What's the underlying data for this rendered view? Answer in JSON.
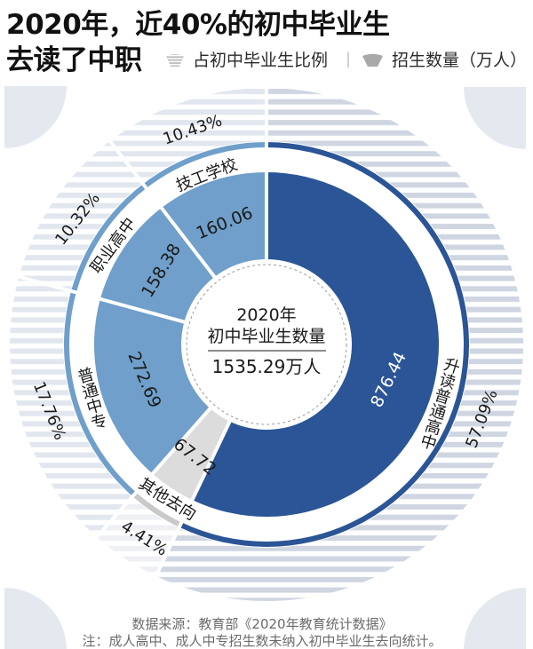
{
  "header": {
    "title_line1": "2020年，近40%的初中毕业生",
    "title_line2": "去读了中职"
  },
  "legend": {
    "items": [
      {
        "icon": "striped-wedge-icon",
        "label": "占初中毕业生比例"
      },
      {
        "icon": "solid-wedge-icon",
        "label": "招生数量（万人）"
      }
    ],
    "separator": "|"
  },
  "center": {
    "year": "2020年",
    "label": "初中毕业生数量",
    "total": "1535.29万人"
  },
  "footer": {
    "source": "数据来源：教育部《2020年教育统计数据》",
    "note": "注：成人高中、成人中专招生数未纳入初中毕业生去向统计。"
  },
  "colors": {
    "primary_blue": "#2b5596",
    "secondary_blue": "#6f9fca",
    "other_gray": "#dcdcdc",
    "stripe_dark": "#cfd6e2",
    "stripe_light": "#e2e7ef",
    "stripe_pale": "#eceff3",
    "decor": "#e4e9f0"
  },
  "chart_data": {
    "type": "pie",
    "subtype": "donut",
    "title": "2020年，近40%的初中毕业生去读了中职",
    "center_label": "2020年 初中毕业生数量 1535.29万人",
    "total": 1535.29,
    "unit": "万人",
    "categories": [
      "升读普通高中",
      "其他去向",
      "普通中专",
      "职业高中",
      "技工学校"
    ],
    "series": [
      {
        "name": "招生数量（万人）",
        "values": [
          876.44,
          67.72,
          272.69,
          158.38,
          160.06
        ]
      },
      {
        "name": "占初中毕业生比例",
        "values": [
          57.09,
          4.41,
          17.76,
          10.32,
          10.43
        ],
        "unit": "%"
      }
    ],
    "legend": [
      "占初中毕业生比例",
      "招生数量（万人）"
    ],
    "legend_position": "top",
    "segments": [
      {
        "key": "general-high-school",
        "label": "升读普通高中",
        "value": 876.44,
        "value_label": "876.44",
        "pct": 57.09,
        "pct_label": "57.09%",
        "color": "#2b5596",
        "ring_color": "#2b5596",
        "stripe": "dark"
      },
      {
        "key": "other",
        "label": "其他去向",
        "value": 67.72,
        "value_label": "67.72",
        "pct": 4.41,
        "pct_label": "4.41%",
        "color": "#dcdcdc",
        "ring_color": "#c9c9c9",
        "stripe": "pale"
      },
      {
        "key": "secondary-specialized",
        "label": "普通中专",
        "value": 272.69,
        "value_label": "272.69",
        "pct": 17.76,
        "pct_label": "17.76%",
        "color": "#6f9fca",
        "ring_color": "#6f9fca",
        "stripe": "light"
      },
      {
        "key": "vocational-high-school",
        "label": "职业高中",
        "value": 158.38,
        "value_label": "158.38",
        "pct": 10.32,
        "pct_label": "10.32%",
        "color": "#6f9fca",
        "ring_color": "#6f9fca",
        "stripe": "light"
      },
      {
        "key": "technical-school",
        "label": "技工学校",
        "value": 160.06,
        "value_label": "160.06",
        "pct": 10.43,
        "pct_label": "10.43%",
        "color": "#6f9fca",
        "ring_color": "#6f9fca",
        "stripe": "light"
      }
    ],
    "source": "数据来源：教育部《2020年教育统计数据》",
    "note": "注：成人高中、成人中专招生数未纳入初中毕业生去向统计。"
  }
}
